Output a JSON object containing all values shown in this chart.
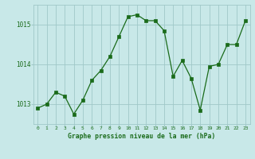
{
  "x": [
    0,
    1,
    2,
    3,
    4,
    5,
    6,
    7,
    8,
    9,
    10,
    11,
    12,
    13,
    14,
    15,
    16,
    17,
    18,
    19,
    20,
    21,
    22,
    23
  ],
  "y": [
    1012.9,
    1013.0,
    1013.3,
    1013.2,
    1012.75,
    1013.1,
    1013.6,
    1013.85,
    1014.2,
    1014.7,
    1015.2,
    1015.25,
    1015.1,
    1015.1,
    1014.85,
    1013.7,
    1014.1,
    1013.65,
    1012.85,
    1013.95,
    1014.0,
    1014.5,
    1014.5,
    1015.1
  ],
  "line_color": "#1a6b1a",
  "marker_color": "#1a6b1a",
  "bg_color": "#c8e8e8",
  "grid_color": "#a0c8c8",
  "axis_label_color": "#1a6b1a",
  "tick_label_color": "#1a6b1a",
  "xlabel": "Graphe pression niveau de la mer (hPa)",
  "ylim": [
    1012.5,
    1015.5
  ],
  "yticks": [
    1013,
    1014,
    1015
  ],
  "xlim": [
    -0.5,
    23.5
  ],
  "xticks": [
    0,
    1,
    2,
    3,
    4,
    5,
    6,
    7,
    8,
    9,
    10,
    11,
    12,
    13,
    14,
    15,
    16,
    17,
    18,
    19,
    20,
    21,
    22,
    23
  ]
}
